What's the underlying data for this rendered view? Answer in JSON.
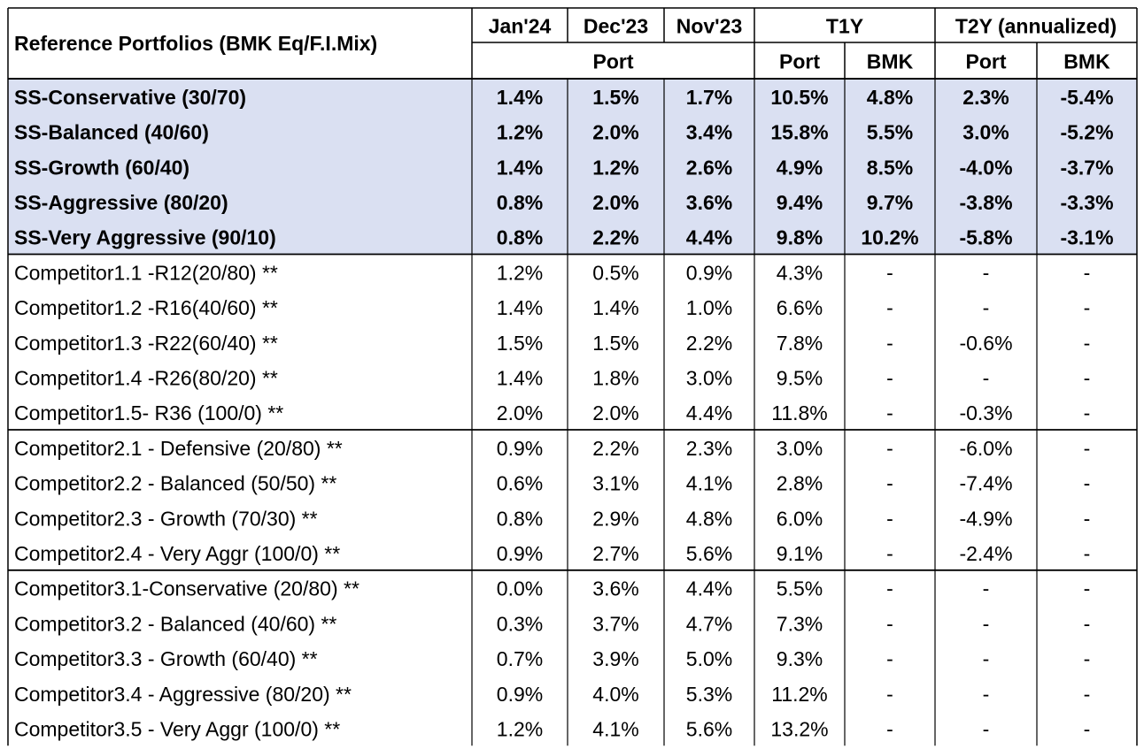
{
  "chart_data": {
    "type": "table",
    "title": "Reference Portfolios (BMK Eq/F.I.Mix)",
    "header_top": [
      "Jan'24",
      "Dec'23",
      "Nov'23",
      "T1Y",
      "T2Y (annualized)"
    ],
    "header_sub": [
      "Port",
      "Port",
      "BMK",
      "Port",
      "BMK"
    ],
    "columns": [
      "Jan'24 Port",
      "Dec'23 Port",
      "Nov'23 Port",
      "T1Y Port",
      "T1Y BMK",
      "T2Y Port",
      "T2Y BMK"
    ],
    "groups": [
      {
        "style": "highlight",
        "rows": [
          {
            "label": "SS-Conservative (30/70)",
            "values": [
              "1.4%",
              "1.5%",
              "1.7%",
              "10.5%",
              "4.8%",
              "2.3%",
              "-5.4%"
            ]
          },
          {
            "label": "SS-Balanced (40/60)",
            "values": [
              "1.2%",
              "2.0%",
              "3.4%",
              "15.8%",
              "5.5%",
              "3.0%",
              "-5.2%"
            ]
          },
          {
            "label": "SS-Growth (60/40)",
            "values": [
              "1.4%",
              "1.2%",
              "2.6%",
              "4.9%",
              "8.5%",
              "-4.0%",
              "-3.7%"
            ]
          },
          {
            "label": "SS-Aggressive (80/20)",
            "values": [
              "0.8%",
              "2.0%",
              "3.6%",
              "9.4%",
              "9.7%",
              "-3.8%",
              "-3.3%"
            ]
          },
          {
            "label": "SS-Very Aggressive (90/10)",
            "values": [
              "0.8%",
              "2.2%",
              "4.4%",
              "9.8%",
              "10.2%",
              "-5.8%",
              "-3.1%"
            ]
          }
        ]
      },
      {
        "style": "normal",
        "rows": [
          {
            "label": "Competitor1.1 -R12(20/80) **",
            "values": [
              "1.2%",
              "0.5%",
              "0.9%",
              "4.3%",
              "-",
              "-",
              "-"
            ]
          },
          {
            "label": "Competitor1.2 -R16(40/60) **",
            "values": [
              "1.4%",
              "1.4%",
              "1.0%",
              "6.6%",
              "-",
              "-",
              "-"
            ]
          },
          {
            "label": "Competitor1.3 -R22(60/40) **",
            "values": [
              "1.5%",
              "1.5%",
              "2.2%",
              "7.8%",
              "-",
              "-0.6%",
              "-"
            ]
          },
          {
            "label": "Competitor1.4 -R26(80/20) **",
            "values": [
              "1.4%",
              "1.8%",
              "3.0%",
              "9.5%",
              "-",
              "-",
              "-"
            ]
          },
          {
            "label": "Competitor1.5- R36 (100/0) **",
            "values": [
              "2.0%",
              "2.0%",
              "4.4%",
              "11.8%",
              "-",
              "-0.3%",
              "-"
            ]
          }
        ]
      },
      {
        "style": "normal",
        "rows": [
          {
            "label": "Competitor2.1  - Defensive  (20/80) **",
            "values": [
              "0.9%",
              "2.2%",
              "2.3%",
              "3.0%",
              "-",
              "-6.0%",
              "-"
            ]
          },
          {
            "label": "Competitor2.2  - Balanced (50/50) **",
            "values": [
              "0.6%",
              "3.1%",
              "4.1%",
              "2.8%",
              "-",
              "-7.4%",
              "-"
            ]
          },
          {
            "label": "Competitor2.3  - Growth  (70/30) **",
            "values": [
              "0.8%",
              "2.9%",
              "4.8%",
              "6.0%",
              "-",
              "-4.9%",
              "-"
            ]
          },
          {
            "label": "Competitor2.4  - Very Aggr  (100/0) **",
            "values": [
              "0.9%",
              "2.7%",
              "5.6%",
              "9.1%",
              "-",
              "-2.4%",
              "-"
            ]
          }
        ]
      },
      {
        "style": "normal",
        "rows": [
          {
            "label": "Competitor3.1-Conservative (20/80) **",
            "values": [
              "0.0%",
              "3.6%",
              "4.4%",
              "5.5%",
              "-",
              "-",
              "-"
            ]
          },
          {
            "label": "Competitor3.2 - Balanced  (40/60) **",
            "values": [
              "0.3%",
              "3.7%",
              "4.7%",
              "7.3%",
              "-",
              "-",
              "-"
            ]
          },
          {
            "label": "Competitor3.3 - Growth  (60/40) **",
            "values": [
              "0.7%",
              "3.9%",
              "5.0%",
              "9.3%",
              "-",
              "-",
              "-"
            ]
          },
          {
            "label": "Competitor3.4 - Aggressive  (80/20) **",
            "values": [
              "0.9%",
              "4.0%",
              "5.3%",
              "11.2%",
              "-",
              "-",
              "-"
            ]
          },
          {
            "label": "Competitor3.5  - Very Aggr (100/0) **",
            "values": [
              "1.2%",
              "4.1%",
              "5.6%",
              "13.2%",
              "-",
              "-",
              "-"
            ]
          }
        ]
      }
    ],
    "colors": {
      "highlight_fill": "#dae0f2",
      "border": "#000000",
      "thin_border": "#bfbfbf",
      "text": "#000000"
    }
  }
}
